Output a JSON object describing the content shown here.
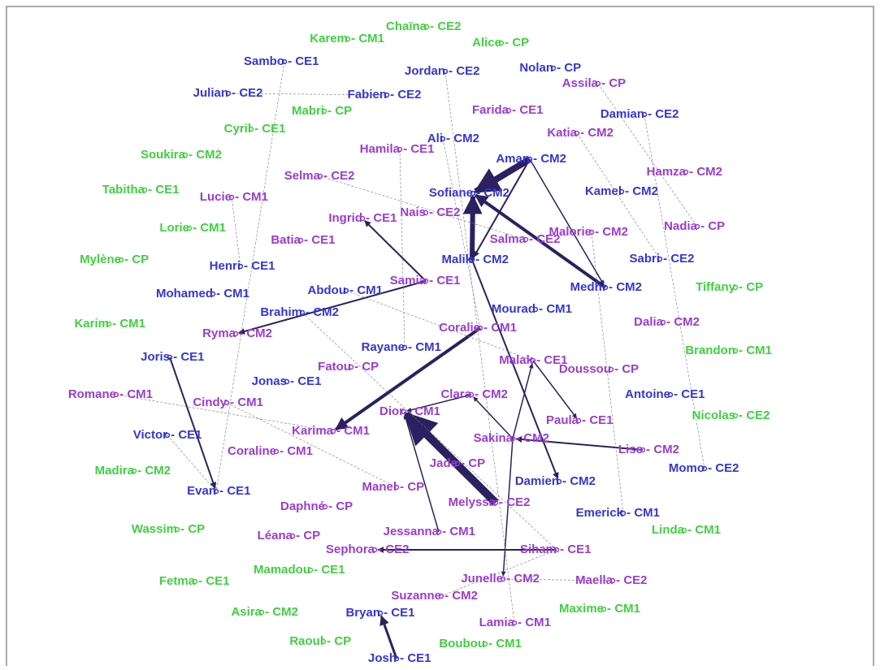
{
  "colors": {
    "green": "#40d040",
    "blue": "#3535d8",
    "purple": "#9a3cd2"
  },
  "nodes": [
    {
      "label": "Chaïna - CE2",
      "color": "green"
    },
    {
      "label": "Karem - CM1",
      "color": "green"
    },
    {
      "label": "Alice - CP",
      "color": "green"
    },
    {
      "label": "Sambo - CE1",
      "color": "blue"
    },
    {
      "label": "Jordan - CE2",
      "color": "blue"
    },
    {
      "label": "Nolan - CP",
      "color": "blue"
    },
    {
      "label": "Assila - CP",
      "color": "purple"
    },
    {
      "label": "Julian - CE2",
      "color": "blue"
    },
    {
      "label": "Fabien - CE2",
      "color": "blue"
    },
    {
      "label": "Mabri - CP",
      "color": "green"
    },
    {
      "label": "Farida - CE1",
      "color": "purple"
    },
    {
      "label": "Damian - CE2",
      "color": "blue"
    },
    {
      "label": "Cyril - CE1",
      "color": "green"
    },
    {
      "label": "Ali - CM2",
      "color": "blue"
    },
    {
      "label": "Katia - CM2",
      "color": "purple"
    },
    {
      "label": "Hamila - CE1",
      "color": "purple"
    },
    {
      "label": "Soukira - CM2",
      "color": "green"
    },
    {
      "label": "Aman - CM2",
      "color": "blue"
    },
    {
      "label": "Hamza - CM2",
      "color": "purple"
    },
    {
      "label": "Selma - CE2",
      "color": "purple"
    },
    {
      "label": "Sofiane - CM2",
      "color": "blue"
    },
    {
      "label": "Kamel - CM2",
      "color": "blue"
    },
    {
      "label": "Tabitha - CE1",
      "color": "green"
    },
    {
      "label": "Lucie - CM1",
      "color": "purple"
    },
    {
      "label": "Nais - CE2",
      "color": "purple"
    },
    {
      "label": "Ingrid - CE1",
      "color": "purple"
    },
    {
      "label": "Nadia - CP",
      "color": "purple"
    },
    {
      "label": "Lorie - CM1",
      "color": "green"
    },
    {
      "label": "Malorie - CM2",
      "color": "purple"
    },
    {
      "label": "Batia - CE1",
      "color": "purple"
    },
    {
      "label": "Salma - CE2",
      "color": "purple"
    },
    {
      "label": "Mylène - CP",
      "color": "green"
    },
    {
      "label": "Malik - CM2",
      "color": "blue"
    },
    {
      "label": "Sabri - CE2",
      "color": "blue"
    },
    {
      "label": "Henri - CE1",
      "color": "blue"
    },
    {
      "label": "Samia - CE1",
      "color": "purple"
    },
    {
      "label": "Abdou - CM1",
      "color": "blue"
    },
    {
      "label": "Mohamed - CM1",
      "color": "blue"
    },
    {
      "label": "Medhi - CM2",
      "color": "blue"
    },
    {
      "label": "Tiffany - CP",
      "color": "green"
    },
    {
      "label": "Mourad - CM1",
      "color": "blue"
    },
    {
      "label": "Brahim - CM2",
      "color": "blue"
    },
    {
      "label": "Karim - CM1",
      "color": "green"
    },
    {
      "label": "Dalia - CM2",
      "color": "purple"
    },
    {
      "label": "Coralie - CM1",
      "color": "purple"
    },
    {
      "label": "Ryma - CM2",
      "color": "purple"
    },
    {
      "label": "Rayane - CM1",
      "color": "blue"
    },
    {
      "label": "Brandon - CM1",
      "color": "green"
    },
    {
      "label": "Joris - CE1",
      "color": "blue"
    },
    {
      "label": "Fatou - CP",
      "color": "purple"
    },
    {
      "label": "Malak - CE1",
      "color": "purple"
    },
    {
      "label": "Doussou - CP",
      "color": "purple"
    },
    {
      "label": "Jonas - CE1",
      "color": "blue"
    },
    {
      "label": "Antoine - CE1",
      "color": "blue"
    },
    {
      "label": "Romane - CM1",
      "color": "purple"
    },
    {
      "label": "Cindy - CM1",
      "color": "purple"
    },
    {
      "label": "Clara - CM2",
      "color": "purple"
    },
    {
      "label": "Dior - CM1",
      "color": "purple"
    },
    {
      "label": "Paula - CE1",
      "color": "purple"
    },
    {
      "label": "Nicolas - CE2",
      "color": "green"
    },
    {
      "label": "Karima - CM1",
      "color": "purple"
    },
    {
      "label": "Victor - CE1",
      "color": "blue"
    },
    {
      "label": "Sakina - CM2",
      "color": "purple"
    },
    {
      "label": "Lise - CM2",
      "color": "purple"
    },
    {
      "label": "Coraline - CM1",
      "color": "purple"
    },
    {
      "label": "Momo - CE2",
      "color": "blue"
    },
    {
      "label": "Madira - CM2",
      "color": "green"
    },
    {
      "label": "Jade - CP",
      "color": "purple"
    },
    {
      "label": "Evan - CE1",
      "color": "blue"
    },
    {
      "label": "Damien - CM2",
      "color": "blue"
    },
    {
      "label": "Melyssa - CE2",
      "color": "purple"
    },
    {
      "label": "Manel - CP",
      "color": "purple"
    },
    {
      "label": "Daphné - CP",
      "color": "purple"
    },
    {
      "label": "Emerick - CM1",
      "color": "blue"
    },
    {
      "label": "Wassim - CP",
      "color": "green"
    },
    {
      "label": "Linda - CM1",
      "color": "green"
    },
    {
      "label": "Léana - CP",
      "color": "purple"
    },
    {
      "label": "Jessanna - CM1",
      "color": "purple"
    },
    {
      "label": "Sephora - CE2",
      "color": "purple"
    },
    {
      "label": "Siham - CE1",
      "color": "purple"
    },
    {
      "label": "Fetma - CE1",
      "color": "green"
    },
    {
      "label": "Mamadou - CE1",
      "color": "green"
    },
    {
      "label": "Junelle - CM2",
      "color": "purple"
    },
    {
      "label": "Maella - CE2",
      "color": "purple"
    },
    {
      "label": "Suzanne - CM2",
      "color": "purple"
    },
    {
      "label": "Maxime - CM1",
      "color": "green"
    },
    {
      "label": "Asira - CM2",
      "color": "green"
    },
    {
      "label": "Bryan - CE1",
      "color": "blue"
    },
    {
      "label": "Lamia - CM1",
      "color": "purple"
    },
    {
      "label": "Raoul - CP",
      "color": "green"
    },
    {
      "label": "Boubou - CM1",
      "color": "green"
    },
    {
      "label": "Josh - CE1",
      "color": "blue"
    }
  ],
  "edges": [
    {
      "from": 17,
      "to": 20,
      "weight": 8
    },
    {
      "from": 32,
      "to": 20,
      "weight": 6
    },
    {
      "from": 38,
      "to": 20,
      "weight": 4
    },
    {
      "from": 70,
      "to": 57,
      "weight": 10
    },
    {
      "from": 44,
      "to": 60,
      "weight": 4
    },
    {
      "from": 35,
      "to": 45,
      "weight": 2
    },
    {
      "from": 35,
      "to": 25,
      "weight": 2
    },
    {
      "from": 17,
      "to": 32,
      "weight": 2
    },
    {
      "from": 32,
      "to": 69,
      "weight": 2
    },
    {
      "from": 48,
      "to": 68,
      "weight": 2
    },
    {
      "from": 91,
      "to": 87,
      "weight": 3
    },
    {
      "from": 79,
      "to": 78,
      "weight": 2
    },
    {
      "from": 63,
      "to": 62,
      "weight": 2
    },
    {
      "from": 62,
      "to": 56,
      "weight": 1.5
    },
    {
      "from": 50,
      "to": 58,
      "weight": 1.5
    },
    {
      "from": 62,
      "to": 82,
      "weight": 1.5
    },
    {
      "from": 17,
      "to": 38,
      "weight": 1.5
    },
    {
      "from": 56,
      "to": 57,
      "weight": 1.5
    },
    {
      "from": 62,
      "to": 50,
      "weight": 1.5
    },
    {
      "from": 77,
      "to": 57,
      "weight": 1.5
    },
    {
      "from": 3,
      "to": 68,
      "weight": 0.5
    },
    {
      "from": 7,
      "to": 8,
      "weight": 0.5
    },
    {
      "from": 14,
      "to": 33,
      "weight": 0.5
    },
    {
      "from": 6,
      "to": 26,
      "weight": 0.5
    },
    {
      "from": 19,
      "to": 30,
      "weight": 0.5
    },
    {
      "from": 54,
      "to": 60,
      "weight": 0.5
    },
    {
      "from": 55,
      "to": 71,
      "weight": 0.5
    },
    {
      "from": 61,
      "to": 68,
      "weight": 0.5
    },
    {
      "from": 11,
      "to": 65,
      "weight": 0.5
    },
    {
      "from": 4,
      "to": 88,
      "weight": 0.5
    },
    {
      "from": 36,
      "to": 50,
      "weight": 0.5
    },
    {
      "from": 41,
      "to": 79,
      "weight": 0.5
    },
    {
      "from": 34,
      "to": 23,
      "weight": 0.5
    },
    {
      "from": 82,
      "to": 83,
      "weight": 0.5
    },
    {
      "from": 84,
      "to": 79,
      "weight": 0.5
    },
    {
      "from": 73,
      "to": 28,
      "weight": 0.5
    },
    {
      "from": 13,
      "to": 44,
      "weight": 0.5
    },
    {
      "from": 15,
      "to": 46,
      "weight": 0.5
    }
  ]
}
